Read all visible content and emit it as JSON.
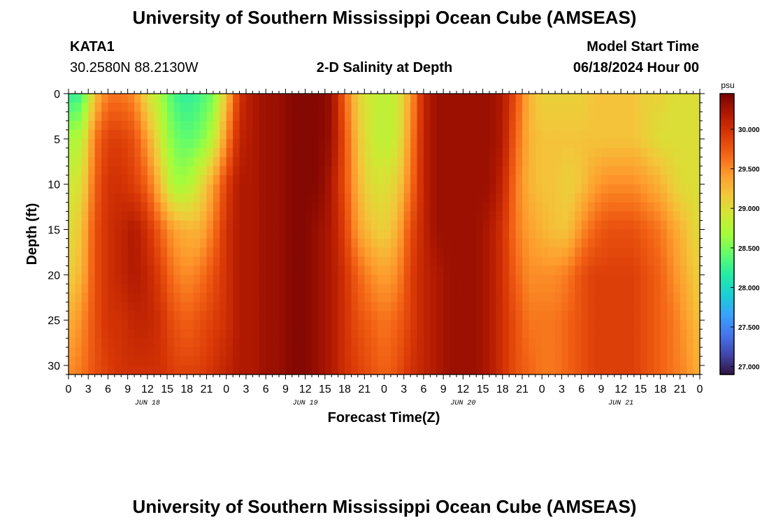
{
  "header": {
    "title": "University of Southern Mississippi Ocean Cube (AMSEAS)",
    "station": "KATA1",
    "coords": "30.2580N  88.2130W",
    "plot_title": "2-D Salinity at Depth",
    "model_label": "Model Start Time",
    "model_time": "06/18/2024 Hour 00"
  },
  "footer": {
    "title": "University of Southern Mississippi Ocean Cube (AMSEAS)"
  },
  "colors": {
    "colormap": [
      "#30123b",
      "#4145ab",
      "#4675ed",
      "#39a2fc",
      "#1bcfd4",
      "#24eca6",
      "#61fc6c",
      "#a4fc3b",
      "#d1e834",
      "#f3c63a",
      "#fe9b2d",
      "#f36315",
      "#d93806",
      "#b11901",
      "#7a0402"
    ]
  },
  "chart_data": {
    "type": "heatmap",
    "title": "2-D Salinity at Depth",
    "xlabel": "Forecast Time(Z)",
    "ylabel": "Depth (ft)",
    "x_unit": "hours since 06/18/2024 00Z",
    "xlim": [
      0,
      96
    ],
    "ylim": [
      0,
      31
    ],
    "x_tick_labels": [
      "0",
      "3",
      "6",
      "9",
      "12",
      "15",
      "18",
      "21",
      "0",
      "3",
      "6",
      "9",
      "12",
      "15",
      "18",
      "21",
      "0",
      "3",
      "6",
      "9",
      "12",
      "15",
      "18",
      "21",
      "0",
      "3",
      "6",
      "9",
      "12",
      "15",
      "18",
      "21",
      "0"
    ],
    "x_tick_values": [
      0,
      3,
      6,
      9,
      12,
      15,
      18,
      21,
      24,
      27,
      30,
      33,
      36,
      39,
      42,
      45,
      48,
      51,
      54,
      57,
      60,
      63,
      66,
      69,
      72,
      75,
      78,
      81,
      84,
      87,
      90,
      93,
      96
    ],
    "day_labels": [
      {
        "label": "JUN 18",
        "x": 12
      },
      {
        "label": "JUN 19",
        "x": 36
      },
      {
        "label": "JUN 20",
        "x": 60
      },
      {
        "label": "JUN 21",
        "x": 84
      }
    ],
    "y_ticks": [
      0,
      5,
      10,
      15,
      20,
      25,
      30
    ],
    "colorbar": {
      "unit": "psu",
      "range": [
        26.9,
        30.45
      ],
      "ticks": [
        "27.000",
        "27.500",
        "28.000",
        "28.500",
        "29.000",
        "29.500",
        "30.000"
      ],
      "tick_values": [
        27.0,
        27.5,
        28.0,
        28.5,
        29.0,
        29.5,
        30.0
      ]
    },
    "depths": [
      0,
      5,
      10,
      15,
      20,
      25,
      31
    ],
    "times": [
      0,
      2,
      4,
      6,
      8,
      10,
      12,
      14,
      16,
      18,
      20,
      22,
      24,
      26,
      28,
      30,
      32,
      34,
      36,
      38,
      40,
      42,
      44,
      46,
      48,
      50,
      52,
      54,
      56,
      58,
      60,
      62,
      64,
      66,
      68,
      70,
      72,
      74,
      76,
      78,
      80,
      82,
      84,
      86,
      88,
      90,
      92,
      94,
      96
    ],
    "values": [
      [
        28.2,
        28.3,
        29.2,
        29.6,
        29.6,
        29.5,
        29.0,
        28.7,
        28.3,
        28.2,
        28.3,
        28.5,
        29.2,
        30.0,
        30.2,
        30.3,
        30.3,
        30.4,
        30.4,
        30.4,
        30.3,
        29.7,
        29.1,
        28.9,
        28.8,
        28.9,
        29.4,
        30.1,
        30.3,
        30.3,
        30.3,
        30.3,
        30.3,
        30.2,
        29.8,
        29.3,
        29.1,
        29.1,
        29.1,
        29.1,
        29.2,
        29.2,
        29.2,
        29.2,
        29.1,
        29.1,
        29.0,
        29.0,
        29.0
      ],
      [
        28.7,
        28.8,
        29.6,
        29.9,
        29.9,
        29.8,
        29.4,
        28.9,
        28.5,
        28.4,
        28.5,
        28.8,
        29.5,
        30.1,
        30.2,
        30.3,
        30.3,
        30.4,
        30.4,
        30.4,
        30.3,
        29.8,
        29.2,
        28.9,
        28.8,
        28.9,
        29.5,
        30.1,
        30.3,
        30.3,
        30.3,
        30.3,
        30.3,
        30.2,
        29.7,
        29.3,
        29.2,
        29.2,
        29.2,
        29.2,
        29.2,
        29.2,
        29.2,
        29.2,
        29.1,
        29.0,
        29.0,
        29.0,
        29.0
      ],
      [
        28.9,
        29.0,
        29.7,
        30.0,
        30.0,
        29.9,
        29.7,
        29.2,
        28.7,
        28.7,
        29.0,
        29.4,
        29.9,
        30.2,
        30.2,
        30.3,
        30.3,
        30.4,
        30.4,
        30.4,
        30.2,
        29.8,
        29.3,
        29.0,
        29.0,
        29.1,
        29.6,
        30.1,
        30.3,
        30.3,
        30.3,
        30.3,
        30.3,
        30.1,
        29.6,
        29.3,
        29.2,
        29.2,
        29.1,
        29.2,
        29.4,
        29.5,
        29.5,
        29.5,
        29.4,
        29.3,
        29.1,
        29.0,
        29.0
      ],
      [
        29.0,
        29.2,
        29.8,
        30.0,
        30.1,
        30.2,
        30.0,
        29.7,
        29.4,
        29.3,
        29.3,
        29.6,
        30.0,
        30.2,
        30.2,
        30.3,
        30.3,
        30.4,
        30.4,
        30.3,
        30.2,
        29.9,
        29.4,
        29.2,
        29.1,
        29.3,
        29.8,
        30.1,
        30.3,
        30.3,
        30.3,
        30.3,
        30.2,
        30.0,
        29.6,
        29.4,
        29.3,
        29.2,
        29.2,
        29.5,
        29.7,
        29.8,
        29.8,
        29.8,
        29.7,
        29.6,
        29.4,
        29.2,
        29.0
      ],
      [
        29.1,
        29.3,
        29.8,
        30.0,
        30.1,
        30.2,
        30.1,
        29.9,
        29.6,
        29.5,
        29.6,
        29.8,
        30.0,
        30.2,
        30.2,
        30.3,
        30.3,
        30.4,
        30.4,
        30.3,
        30.2,
        30.0,
        29.7,
        29.5,
        29.4,
        29.5,
        29.9,
        30.1,
        30.2,
        30.3,
        30.3,
        30.3,
        30.2,
        30.0,
        29.7,
        29.5,
        29.5,
        29.5,
        29.6,
        29.8,
        29.9,
        29.9,
        29.9,
        29.9,
        29.8,
        29.7,
        29.5,
        29.3,
        29.1
      ],
      [
        29.3,
        29.5,
        29.8,
        30.0,
        30.0,
        30.1,
        30.1,
        30.0,
        29.8,
        29.7,
        29.8,
        29.9,
        30.0,
        30.2,
        30.2,
        30.3,
        30.3,
        30.4,
        30.4,
        30.3,
        30.2,
        30.0,
        29.8,
        29.7,
        29.6,
        29.7,
        29.9,
        30.1,
        30.2,
        30.3,
        30.3,
        30.3,
        30.2,
        30.0,
        29.8,
        29.6,
        29.6,
        29.6,
        29.7,
        29.8,
        29.9,
        29.9,
        29.9,
        29.9,
        29.8,
        29.7,
        29.6,
        29.4,
        29.2
      ],
      [
        29.5,
        29.6,
        29.8,
        29.9,
        30.0,
        30.0,
        30.0,
        30.0,
        29.9,
        29.9,
        29.9,
        30.0,
        30.1,
        30.2,
        30.2,
        30.3,
        30.3,
        30.4,
        30.4,
        30.3,
        30.2,
        30.0,
        29.9,
        29.8,
        29.7,
        29.8,
        30.0,
        30.1,
        30.2,
        30.3,
        30.3,
        30.3,
        30.2,
        30.0,
        29.8,
        29.7,
        29.6,
        29.6,
        29.7,
        29.8,
        29.9,
        29.9,
        29.9,
        29.9,
        29.8,
        29.7,
        29.6,
        29.5,
        29.3
      ]
    ]
  }
}
